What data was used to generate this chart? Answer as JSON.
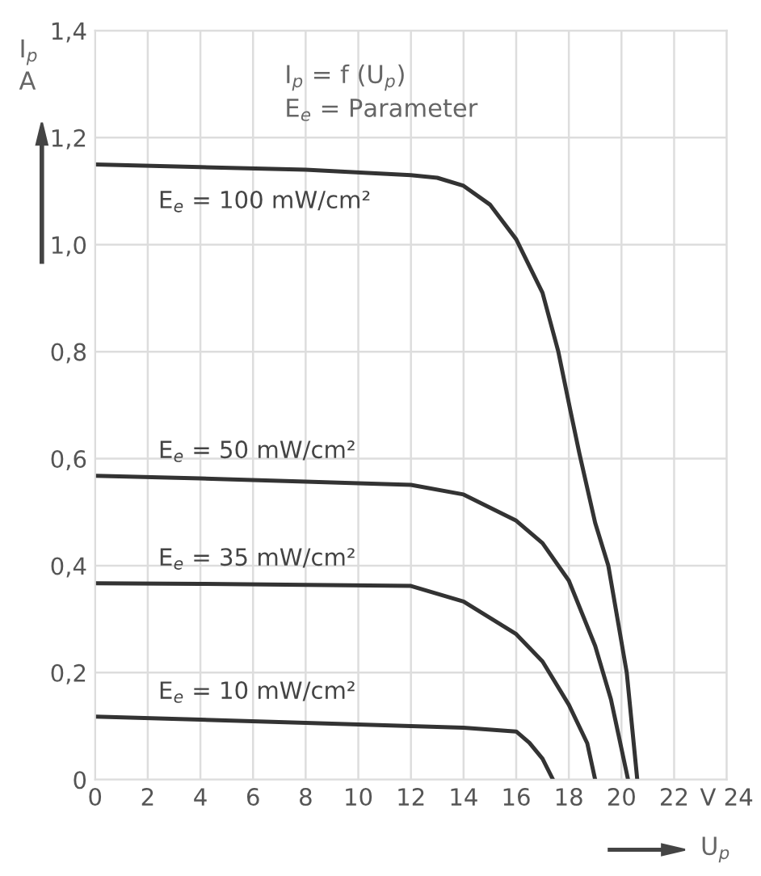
{
  "chart_data": {
    "type": "line",
    "xlabel": "U$_{p}$",
    "ylabel": "I$_{p}$\nA",
    "annotations": [
      "I$_{p}$ = f (U$_{p}$)",
      "E$_{e}$ = Parameter"
    ],
    "xlim": [
      0,
      24
    ],
    "ylim": [
      0,
      1.4
    ],
    "xticks": [
      0,
      2,
      4,
      6,
      8,
      10,
      12,
      14,
      16,
      18,
      20,
      22,
      {
        "value": 24,
        "label": "V 24"
      }
    ],
    "yticks": [
      0,
      {
        "value": 0.2,
        "label": "0,2"
      },
      {
        "value": 0.4,
        "label": "0,4"
      },
      {
        "value": 0.6,
        "label": "0,6"
      },
      {
        "value": 0.8,
        "label": "0,8"
      },
      {
        "value": 1.0,
        "label": "1,0"
      },
      {
        "value": 1.2,
        "label": "1,2"
      },
      {
        "value": 1.4,
        "label": "1,4"
      }
    ],
    "grid": true,
    "legend": false,
    "marker": "none",
    "line_style": "solid",
    "series": [
      {
        "name": "E$_{e}$ = 100 mW/cm²",
        "color": "#333333",
        "x": [
          0,
          4,
          8,
          12,
          13,
          14,
          15,
          16,
          17,
          17.6,
          18.1,
          18.4,
          19,
          19.5,
          20.2,
          20.6
        ],
        "values": [
          1.15,
          1.145,
          1.14,
          1.13,
          1.125,
          1.11,
          1.075,
          1.01,
          0.91,
          0.8,
          0.68,
          0.61,
          0.48,
          0.4,
          0.2,
          0
        ]
      },
      {
        "name": "E$_{e}$ = 50 mW/cm²",
        "color": "#333333",
        "x": [
          0,
          4,
          8,
          12,
          14,
          16,
          17,
          18,
          19,
          19.6,
          20.25
        ],
        "values": [
          0.568,
          0.563,
          0.557,
          0.551,
          0.533,
          0.484,
          0.442,
          0.372,
          0.25,
          0.15,
          0
        ]
      },
      {
        "name": "E$_{e}$ = 35 mW/cm²",
        "color": "#333333",
        "x": [
          0,
          4,
          8,
          12,
          14,
          16,
          17,
          18,
          18.7,
          19.0
        ],
        "values": [
          0.367,
          0.366,
          0.364,
          0.362,
          0.333,
          0.272,
          0.221,
          0.14,
          0.068,
          0
        ]
      },
      {
        "name": "E$_{e}$ = 10 mW/cm²",
        "color": "#333333",
        "x": [
          0,
          4,
          8,
          12,
          14,
          16,
          16.5,
          17,
          17.4
        ],
        "values": [
          0.118,
          0.112,
          0.106,
          0.1,
          0.097,
          0.09,
          0.069,
          0.039,
          0
        ]
      }
    ]
  }
}
